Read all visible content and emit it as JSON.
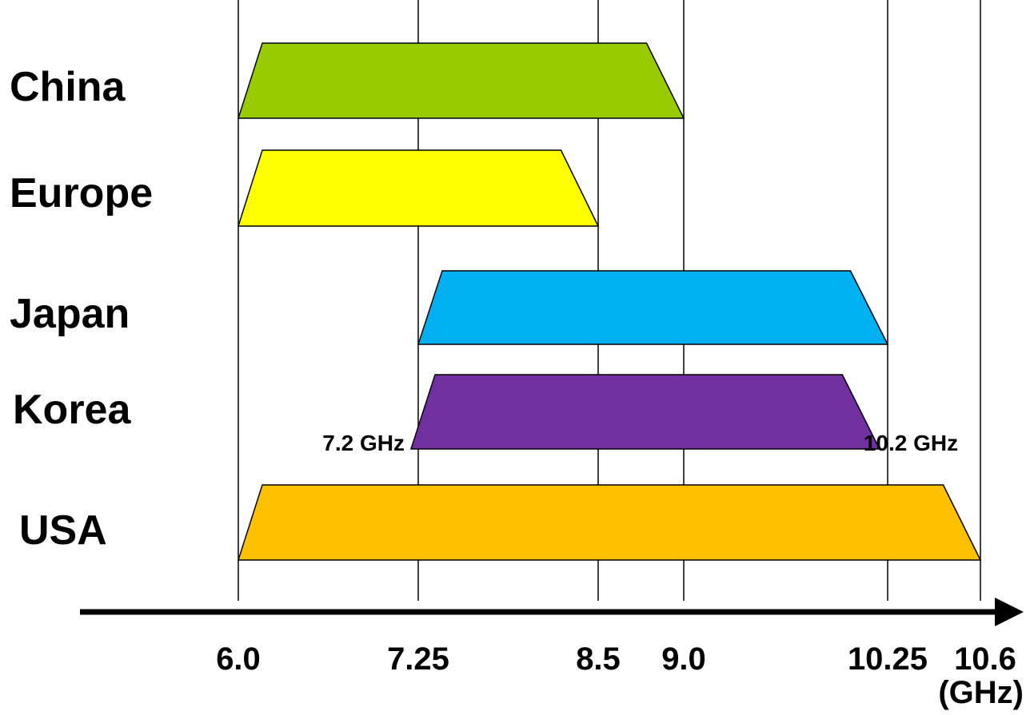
{
  "chart_data": {
    "type": "bar",
    "orientation": "horizontal",
    "title": "",
    "xlabel": "",
    "unit": "(GHz)",
    "x_ticks": [
      6.0,
      7.25,
      8.5,
      9.0,
      10.25,
      10.6
    ],
    "x_tick_labels": [
      "6.0",
      "7.25",
      "8.5",
      "9.0",
      "10.25",
      "10.6"
    ],
    "xlim": [
      6.0,
      10.6
    ],
    "grid": "vertical-at-ticks",
    "categories": [
      "China",
      "Europe",
      "Japan",
      "Korea",
      "USA"
    ],
    "series": [
      {
        "category": "China",
        "start": 6.0,
        "end": 9.0,
        "color": "#99CC00"
      },
      {
        "category": "Europe",
        "start": 6.0,
        "end": 8.5,
        "color": "#FFFF00"
      },
      {
        "category": "Japan",
        "start": 7.25,
        "end": 10.25,
        "color": "#00B0F0"
      },
      {
        "category": "Korea",
        "start": 7.2,
        "end": 10.2,
        "color": "#7030A0"
      },
      {
        "category": "USA",
        "start": 6.0,
        "end": 10.6,
        "color": "#FFC000"
      }
    ],
    "annotations": [
      {
        "text": "7.2 GHz",
        "value": 7.2,
        "category": "Korea"
      },
      {
        "text": "10.2 GHz",
        "value": 10.2,
        "category": "Korea"
      }
    ]
  }
}
